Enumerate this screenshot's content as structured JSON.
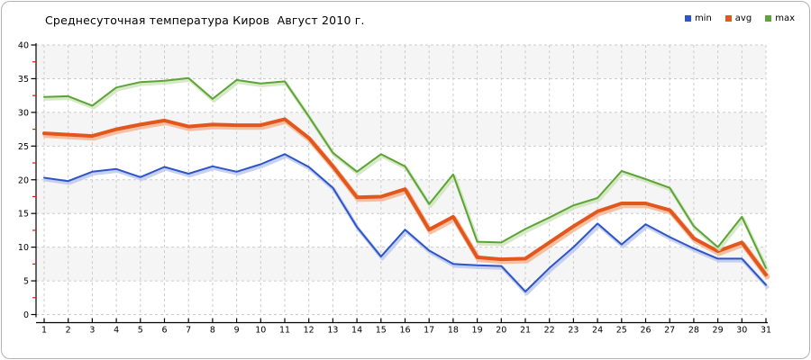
{
  "header": {
    "title": "Среднесуточная температура Киров  Август 2010 г."
  },
  "legend": {
    "items": [
      {
        "label": "min",
        "color": "#2E55C6"
      },
      {
        "label": "avg",
        "color": "#E2571D"
      },
      {
        "label": "max",
        "color": "#5CA437"
      }
    ]
  },
  "chart_data": {
    "type": "line",
    "title": "Среднесуточная температура Киров  Август 2010 г.",
    "xlabel": "",
    "ylabel": "",
    "x_categories": [
      1,
      2,
      3,
      4,
      5,
      6,
      7,
      8,
      9,
      10,
      11,
      12,
      13,
      14,
      15,
      16,
      17,
      18,
      19,
      20,
      21,
      22,
      23,
      24,
      25,
      26,
      27,
      28,
      29,
      30,
      31
    ],
    "series": [
      {
        "name": "min",
        "color": "#2E55C6",
        "shadow": "#b9c6ef",
        "width": 2,
        "values": [
          20.3,
          19.8,
          21.2,
          21.6,
          20.4,
          21.9,
          20.9,
          22.0,
          21.2,
          22.3,
          23.8,
          21.9,
          18.8,
          13.0,
          8.6,
          12.6,
          9.5,
          7.5,
          7.3,
          7.2,
          3.4,
          6.9,
          10.0,
          13.5,
          10.4,
          13.4,
          11.5,
          9.8,
          8.3,
          8.3,
          4.4
        ]
      },
      {
        "name": "avg",
        "color": "#E2571D",
        "shadow": "#f6b18c",
        "width": 4,
        "values": [
          26.9,
          26.7,
          26.5,
          27.5,
          28.2,
          28.8,
          27.9,
          28.2,
          28.1,
          28.1,
          29.0,
          26.2,
          22.0,
          17.4,
          17.5,
          18.6,
          12.6,
          14.5,
          8.5,
          8.2,
          8.3,
          10.7,
          13.1,
          15.3,
          16.5,
          16.5,
          15.5,
          11.3,
          9.4,
          10.7,
          5.9
        ]
      },
      {
        "name": "max",
        "color": "#5CA437",
        "shadow": "#cde4b8",
        "width": 2,
        "values": [
          32.3,
          32.4,
          31.0,
          33.7,
          34.5,
          34.7,
          35.1,
          32.0,
          34.8,
          34.3,
          34.6,
          29.4,
          24.0,
          21.2,
          23.8,
          22.0,
          16.4,
          20.8,
          10.8,
          10.7,
          12.7,
          14.4,
          16.2,
          17.3,
          21.3,
          20.1,
          18.8,
          13.1,
          10.0,
          14.5,
          6.9
        ]
      }
    ],
    "ylim": [
      0,
      40
    ],
    "y_major_step": 5,
    "y_minor_step": 2.5,
    "grid": "dashed",
    "grid_color": "#cbcbcb",
    "band_color": "#f5f5f5",
    "axis_color": "#000000",
    "minor_tick_color": "#cc2200",
    "legend_position": "top-right"
  }
}
